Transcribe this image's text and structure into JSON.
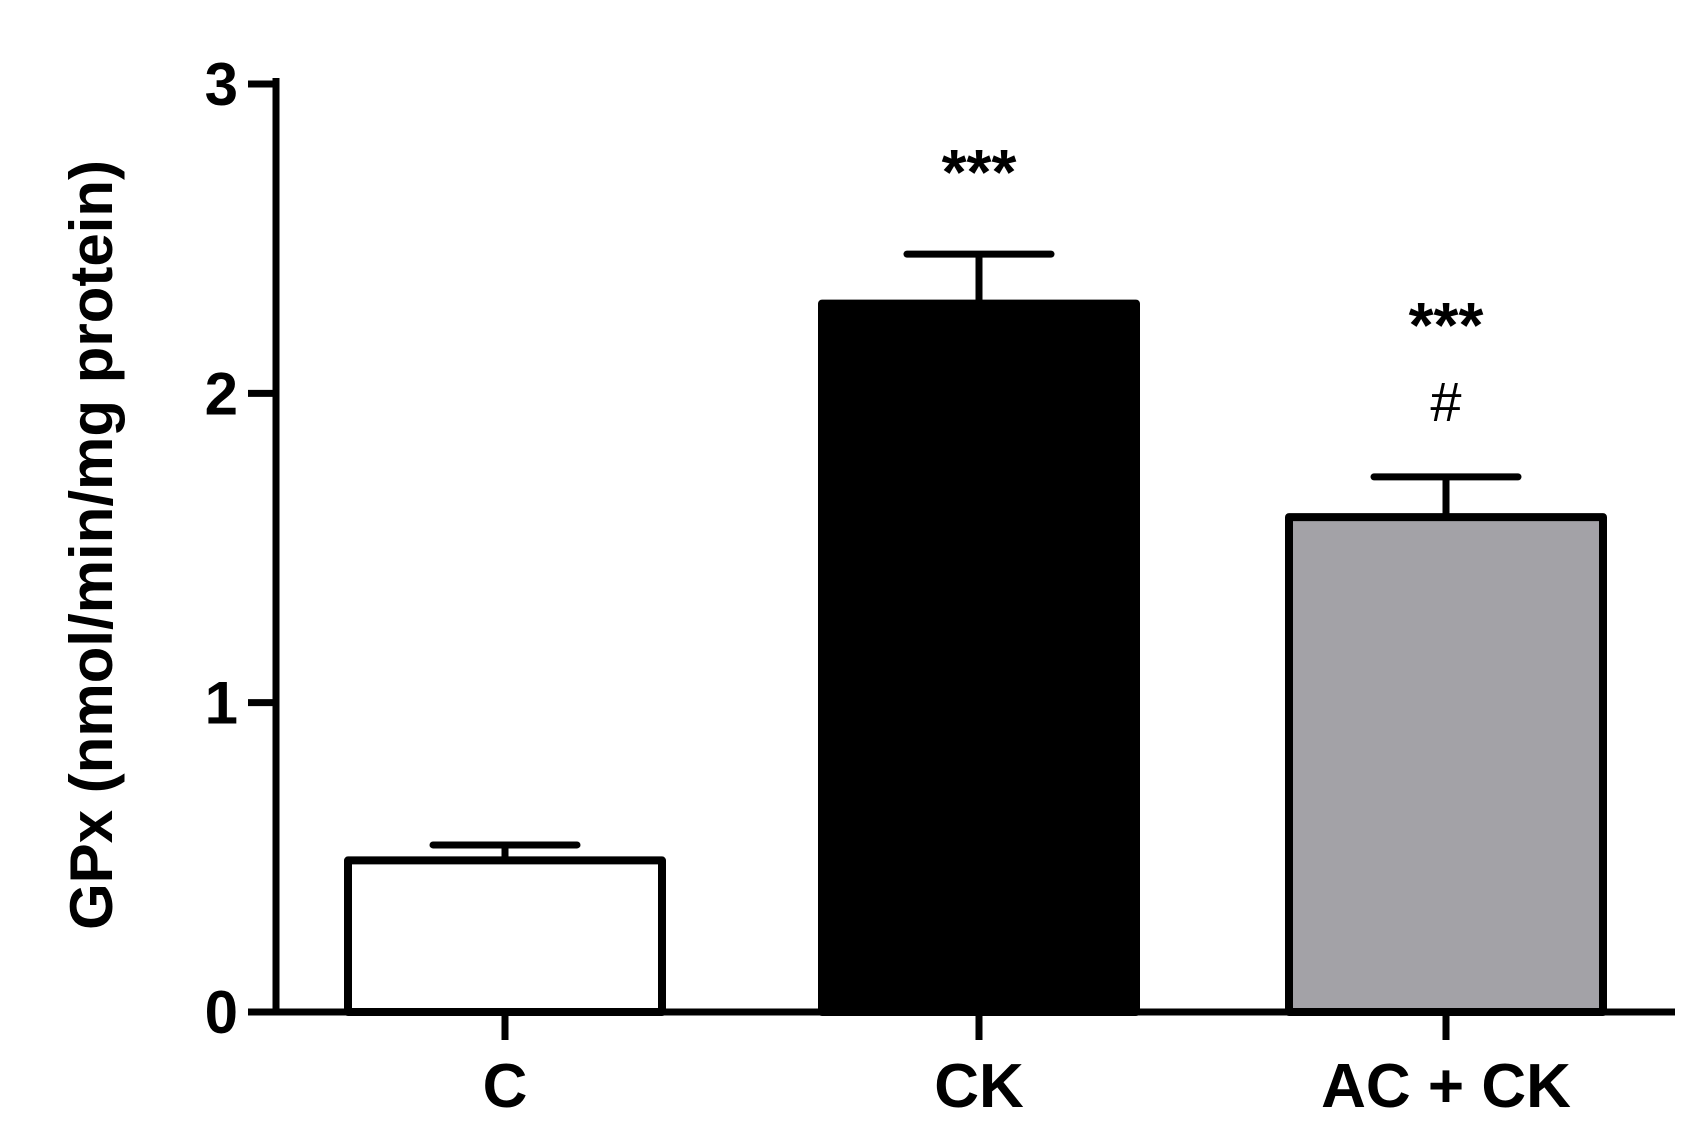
{
  "chart_data": {
    "type": "bar",
    "title": "",
    "xlabel": "",
    "ylabel": "GPx (nmol/min/mg protein)",
    "ylim": [
      0,
      3
    ],
    "yticks": [
      0,
      1,
      2,
      3
    ],
    "grid": false,
    "categories": [
      "C",
      "CK",
      "AC + CK"
    ],
    "values": [
      0.49,
      2.29,
      1.6
    ],
    "errors": [
      0.05,
      0.16,
      0.13
    ],
    "bar_colors": [
      "#ffffff",
      "#000000",
      "#a3a2a7"
    ],
    "annotations": [
      {
        "category": "CK",
        "texts": [
          "***"
        ]
      },
      {
        "category": "AC + CK",
        "texts": [
          "***",
          "#"
        ]
      }
    ]
  }
}
